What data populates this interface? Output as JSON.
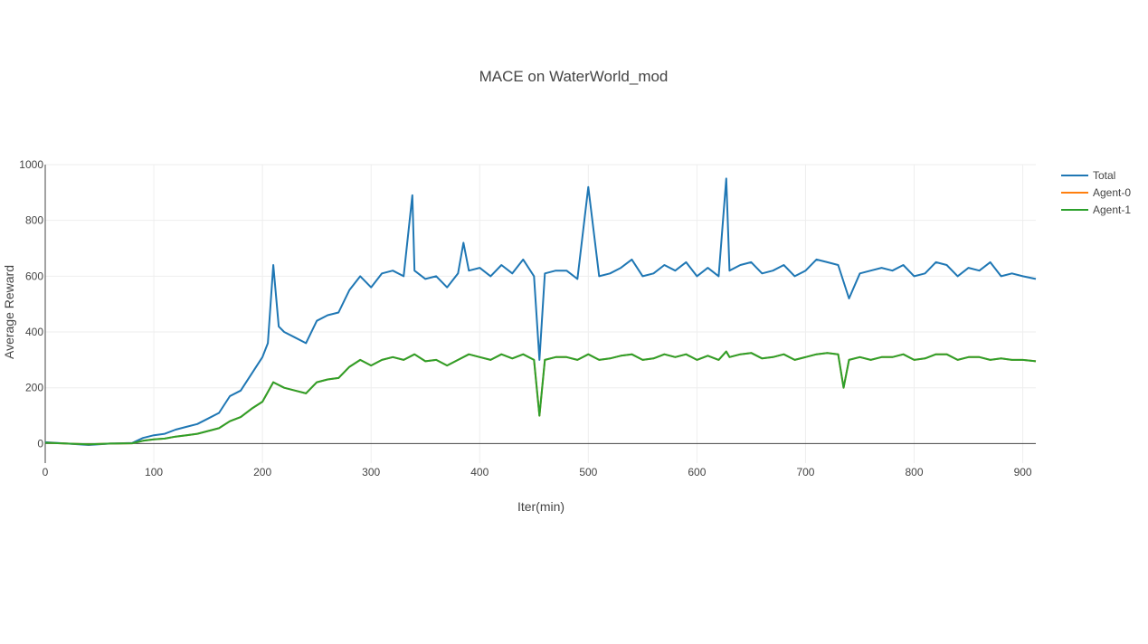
{
  "chart_data": {
    "type": "line",
    "title": "MACE on WaterWorld_mod",
    "xlabel": "Iter(min)",
    "ylabel": "Average Reward",
    "xlim": [
      0,
      912
    ],
    "ylim": [
      -70,
      1000
    ],
    "xticks": [
      0,
      100,
      200,
      300,
      400,
      500,
      600,
      700,
      800,
      900
    ],
    "yticks": [
      0,
      200,
      400,
      600,
      800,
      1000
    ],
    "grid": true,
    "legend_position": "top-right",
    "series": [
      {
        "name": "Total",
        "color": "#1f77b4",
        "x": [
          0,
          20,
          40,
          60,
          80,
          90,
          100,
          110,
          120,
          130,
          140,
          150,
          160,
          170,
          180,
          190,
          200,
          205,
          210,
          215,
          220,
          230,
          240,
          250,
          260,
          270,
          280,
          290,
          300,
          310,
          320,
          330,
          338,
          340,
          350,
          360,
          370,
          380,
          385,
          390,
          400,
          410,
          420,
          430,
          440,
          450,
          455,
          460,
          470,
          480,
          490,
          500,
          510,
          520,
          530,
          540,
          550,
          560,
          570,
          580,
          590,
          600,
          610,
          620,
          627,
          630,
          640,
          650,
          660,
          670,
          680,
          690,
          700,
          710,
          720,
          730,
          740,
          750,
          760,
          770,
          780,
          790,
          800,
          810,
          820,
          830,
          840,
          850,
          860,
          870,
          880,
          890,
          900,
          912
        ],
        "y": [
          5,
          0,
          -5,
          0,
          2,
          20,
          30,
          35,
          50,
          60,
          70,
          90,
          110,
          170,
          190,
          250,
          310,
          360,
          640,
          420,
          400,
          380,
          360,
          440,
          460,
          470,
          550,
          600,
          560,
          610,
          620,
          600,
          890,
          620,
          590,
          600,
          560,
          610,
          720,
          620,
          630,
          600,
          640,
          610,
          660,
          600,
          300,
          610,
          620,
          620,
          590,
          920,
          600,
          610,
          630,
          660,
          600,
          610,
          640,
          620,
          650,
          600,
          630,
          600,
          950,
          620,
          640,
          650,
          610,
          620,
          640,
          600,
          620,
          660,
          650,
          640,
          520,
          610,
          620,
          630,
          620,
          640,
          600,
          610,
          650,
          640,
          600,
          630,
          620,
          650,
          600,
          610,
          600,
          590
        ]
      },
      {
        "name": "Agent-0",
        "color": "#ff7f0e",
        "x": [
          0,
          20,
          40,
          60,
          80,
          90,
          100,
          110,
          120,
          130,
          140,
          150,
          160,
          170,
          180,
          190,
          200,
          210,
          220,
          230,
          240,
          250,
          260,
          270,
          280,
          290,
          300,
          310,
          320,
          330,
          340,
          350,
          360,
          370,
          380,
          390,
          400,
          410,
          420,
          430,
          440,
          450,
          455,
          460,
          470,
          480,
          490,
          500,
          510,
          520,
          530,
          540,
          550,
          560,
          570,
          580,
          590,
          600,
          610,
          620,
          627,
          630,
          640,
          650,
          660,
          670,
          680,
          690,
          700,
          710,
          720,
          730,
          735,
          740,
          750,
          760,
          770,
          780,
          790,
          800,
          810,
          820,
          830,
          840,
          850,
          860,
          870,
          880,
          890,
          900,
          912
        ],
        "y": [
          3,
          0,
          -3,
          0,
          1,
          10,
          15,
          18,
          25,
          30,
          35,
          45,
          55,
          80,
          95,
          125,
          150,
          220,
          200,
          190,
          180,
          220,
          230,
          235,
          275,
          300,
          280,
          300,
          310,
          300,
          320,
          295,
          300,
          280,
          300,
          320,
          310,
          300,
          320,
          305,
          320,
          300,
          100,
          300,
          310,
          310,
          300,
          320,
          300,
          305,
          315,
          320,
          300,
          305,
          320,
          310,
          320,
          300,
          315,
          300,
          330,
          310,
          320,
          325,
          305,
          310,
          320,
          300,
          310,
          320,
          325,
          320,
          200,
          300,
          310,
          300,
          310,
          310,
          320,
          300,
          305,
          320,
          320,
          300,
          310,
          310,
          300,
          305,
          300,
          300,
          295
        ]
      },
      {
        "name": "Agent-1",
        "color": "#2ca02c",
        "x": [
          0,
          20,
          40,
          60,
          80,
          90,
          100,
          110,
          120,
          130,
          140,
          150,
          160,
          170,
          180,
          190,
          200,
          210,
          220,
          230,
          240,
          250,
          260,
          270,
          280,
          290,
          300,
          310,
          320,
          330,
          340,
          350,
          360,
          370,
          380,
          390,
          400,
          410,
          420,
          430,
          440,
          450,
          455,
          460,
          470,
          480,
          490,
          500,
          510,
          520,
          530,
          540,
          550,
          560,
          570,
          580,
          590,
          600,
          610,
          620,
          627,
          630,
          640,
          650,
          660,
          670,
          680,
          690,
          700,
          710,
          720,
          730,
          735,
          740,
          750,
          760,
          770,
          780,
          790,
          800,
          810,
          820,
          830,
          840,
          850,
          860,
          870,
          880,
          890,
          900,
          912
        ],
        "y": [
          3,
          0,
          -3,
          0,
          1,
          10,
          15,
          18,
          25,
          30,
          35,
          45,
          55,
          80,
          95,
          125,
          150,
          220,
          200,
          190,
          180,
          220,
          230,
          235,
          275,
          300,
          280,
          300,
          310,
          300,
          320,
          295,
          300,
          280,
          300,
          320,
          310,
          300,
          320,
          305,
          320,
          300,
          100,
          300,
          310,
          310,
          300,
          320,
          300,
          305,
          315,
          320,
          300,
          305,
          320,
          310,
          320,
          300,
          315,
          300,
          330,
          310,
          320,
          325,
          305,
          310,
          320,
          300,
          310,
          320,
          325,
          320,
          200,
          300,
          310,
          300,
          310,
          310,
          320,
          300,
          305,
          320,
          320,
          300,
          310,
          310,
          300,
          305,
          300,
          300,
          295
        ]
      }
    ]
  }
}
